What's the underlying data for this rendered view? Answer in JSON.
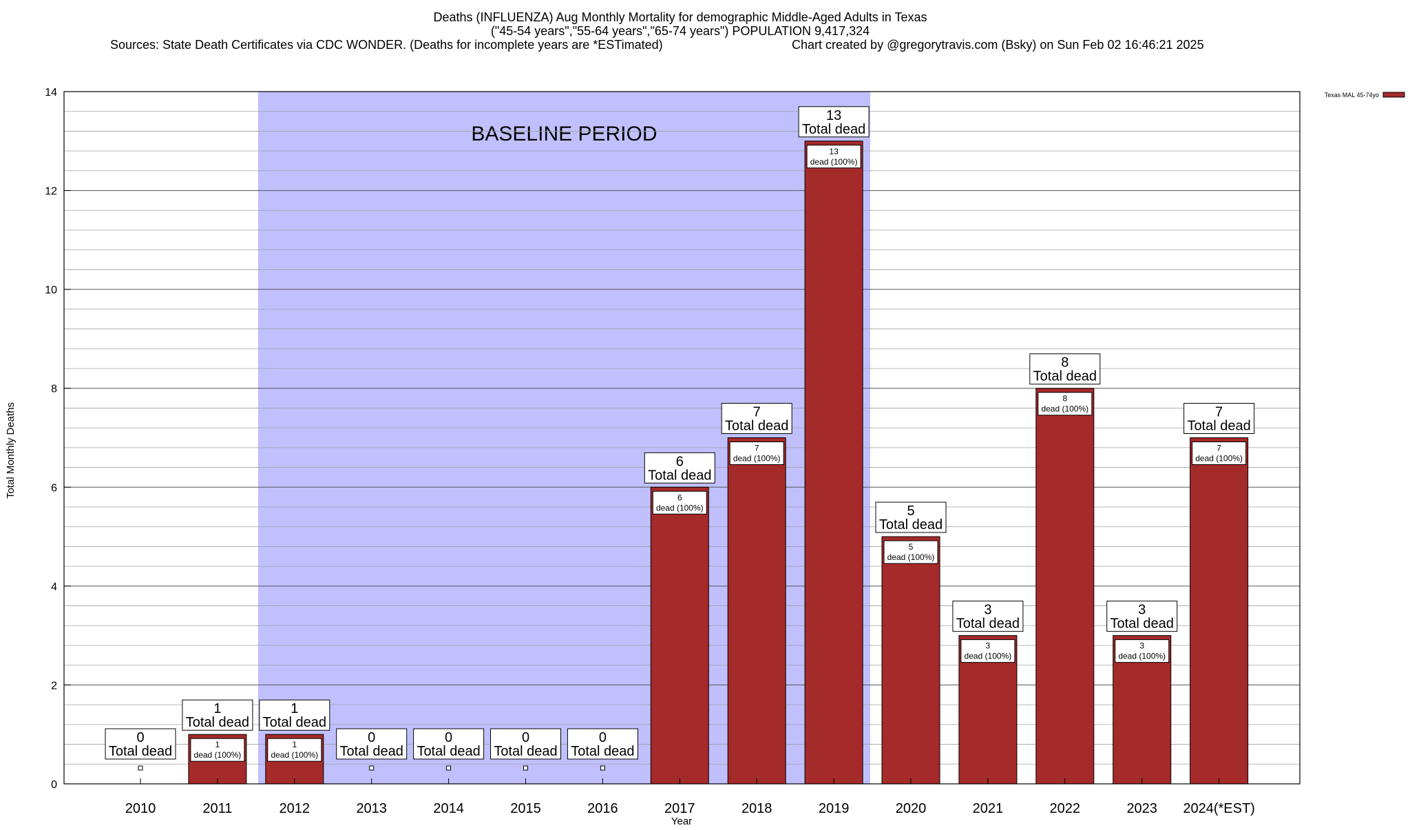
{
  "header": {
    "title_line1": "Deaths (INFLUENZA) Aug Monthly Mortality for demographic Middle-Aged Adults in Texas",
    "title_line2": "(\"45-54 years\",\"55-64 years\",\"65-74 years\") POPULATION 9,417,324",
    "sources": "Sources: State Death Certificates via CDC WONDER. (Deaths for incomplete years are *ESTimated)",
    "credit": "Chart created by @gregorytravis.com (Bsky) on Sun Feb 02 16:46:21 2025"
  },
  "colors": {
    "bar": "#a52a2a",
    "baseline_band": "#c0c0ff",
    "grid": "#a0a0a0"
  },
  "chart_data": {
    "type": "bar",
    "title": "Deaths (INFLUENZA) Aug Monthly Mortality for demographic Middle-Aged Adults in Texas",
    "xlabel": "Year",
    "ylabel": "Total Monthly Deaths",
    "ylim": [
      0,
      14
    ],
    "yticks": [
      0,
      2,
      4,
      6,
      8,
      10,
      12,
      14
    ],
    "grid": true,
    "legend_position": "top-right",
    "categories": [
      "2010",
      "2011",
      "2012",
      "2013",
      "2014",
      "2015",
      "2016",
      "2017",
      "2018",
      "2019",
      "2020",
      "2021",
      "2022",
      "2023",
      "2024(*EST)"
    ],
    "series": [
      {
        "name": "Texas MAL 45-74yo",
        "values": [
          0,
          1,
          1,
          0,
          0,
          0,
          0,
          6,
          7,
          13,
          5,
          3,
          8,
          3,
          7
        ]
      }
    ],
    "total_label_suffix": "Total dead",
    "inner_label_suffix": "dead (100%)",
    "annotation": {
      "text": "BASELINE PERIOD",
      "from_category": "2012",
      "to_category": "2019"
    }
  }
}
